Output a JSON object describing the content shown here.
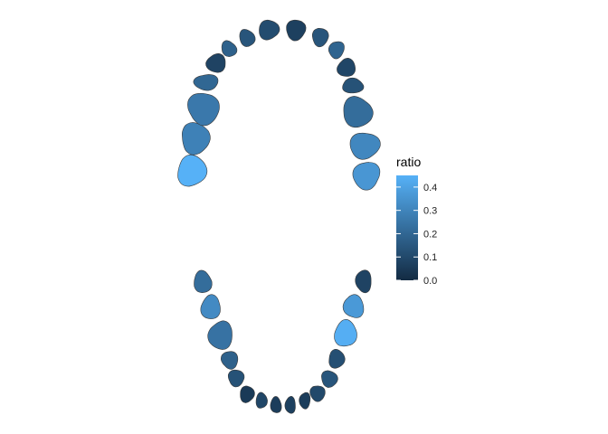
{
  "chart_data": {
    "type": "heatmap",
    "title": "",
    "legend": {
      "title": "ratio",
      "placement": "right",
      "range": [
        0,
        0.45
      ],
      "ticks": [
        "0.0",
        "0.1",
        "0.2",
        "0.3",
        "0.4"
      ],
      "tick_values": [
        0.0,
        0.1,
        0.2,
        0.3,
        0.4
      ],
      "color_low": "#132B43",
      "color_high": "#56B1F7"
    },
    "upper_arch": [
      {
        "tooth": 1,
        "ratio": 0.45
      },
      {
        "tooth": 2,
        "ratio": 0.29
      },
      {
        "tooth": 3,
        "ratio": 0.26
      },
      {
        "tooth": 4,
        "ratio": 0.2
      },
      {
        "tooth": 5,
        "ratio": 0.08
      },
      {
        "tooth": 6,
        "ratio": 0.18
      },
      {
        "tooth": 7,
        "ratio": 0.14
      },
      {
        "tooth": 8,
        "ratio": 0.11
      },
      {
        "tooth": 9,
        "ratio": 0.07
      },
      {
        "tooth": 10,
        "ratio": 0.14
      },
      {
        "tooth": 11,
        "ratio": 0.19
      },
      {
        "tooth": 12,
        "ratio": 0.09
      },
      {
        "tooth": 13,
        "ratio": 0.13
      },
      {
        "tooth": 14,
        "ratio": 0.22
      },
      {
        "tooth": 15,
        "ratio": 0.31
      },
      {
        "tooth": 16,
        "ratio": 0.36
      }
    ],
    "lower_arch": [
      {
        "tooth": 17,
        "ratio": 0.08
      },
      {
        "tooth": 18,
        "ratio": 0.37
      },
      {
        "tooth": 19,
        "ratio": 0.44
      },
      {
        "tooth": 20,
        "ratio": 0.12
      },
      {
        "tooth": 21,
        "ratio": 0.14
      },
      {
        "tooth": 22,
        "ratio": 0.1
      },
      {
        "tooth": 23,
        "ratio": 0.06
      },
      {
        "tooth": 24,
        "ratio": 0.07
      },
      {
        "tooth": 25,
        "ratio": 0.06
      },
      {
        "tooth": 26,
        "ratio": 0.09
      },
      {
        "tooth": 27,
        "ratio": 0.05
      },
      {
        "tooth": 28,
        "ratio": 0.13
      },
      {
        "tooth": 29,
        "ratio": 0.18
      },
      {
        "tooth": 30,
        "ratio": 0.24
      },
      {
        "tooth": 31,
        "ratio": 0.32
      },
      {
        "tooth": 32,
        "ratio": 0.22
      }
    ]
  }
}
